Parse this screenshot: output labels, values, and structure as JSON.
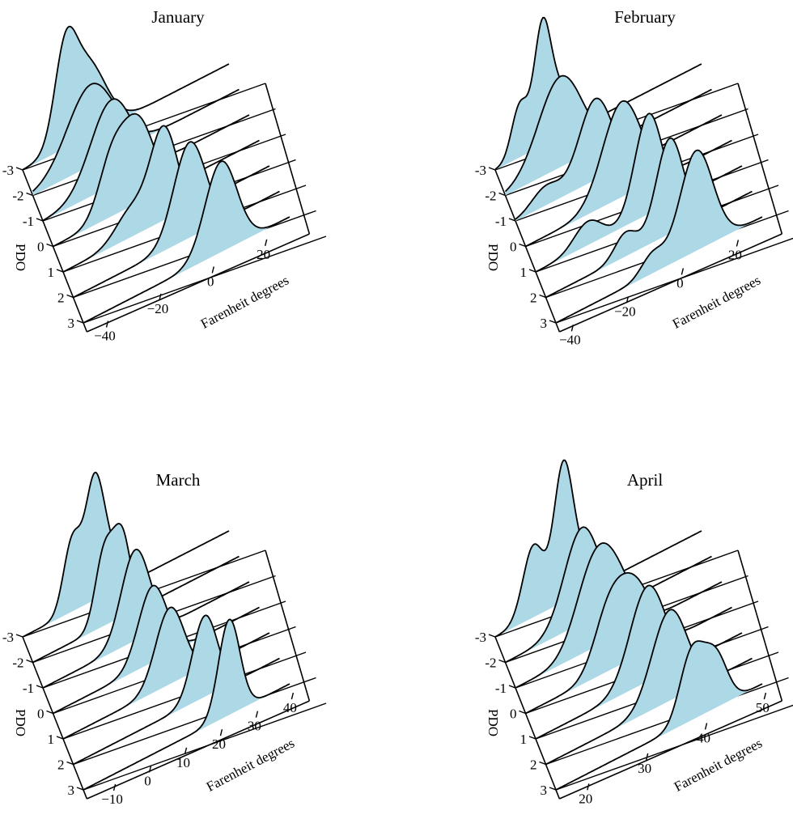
{
  "chart_data": [
    {
      "type": "area",
      "title": "January",
      "xlabel": "Farenheit degrees",
      "ylabel": "PDO",
      "x_ticks": [
        "-40",
        "-20",
        "0",
        "20"
      ],
      "y_ticks": [
        "-3",
        "-2",
        "-1",
        "0",
        "1",
        "2",
        "3"
      ],
      "ylim": [
        -3,
        3
      ],
      "grid": true,
      "series": [
        {
          "pdo": -3,
          "peaks": [
            {
              "x": -32,
              "height": 0.8,
              "width": 4
            },
            {
              "x": -24,
              "height": 0.78,
              "width": 7
            }
          ]
        },
        {
          "pdo": -2,
          "peaks": [
            {
              "x": -26,
              "height": 0.85,
              "width": 9
            }
          ]
        },
        {
          "pdo": -1,
          "peaks": [
            {
              "x": -22,
              "height": 0.9,
              "width": 8
            }
          ]
        },
        {
          "pdo": 0,
          "peaks": [
            {
              "x": -26,
              "height": 0.55,
              "width": 5
            },
            {
              "x": -16,
              "height": 0.85,
              "width": 6
            }
          ]
        },
        {
          "pdo": 1,
          "peaks": [
            {
              "x": -22,
              "height": 0.3,
              "width": 6
            },
            {
              "x": -10,
              "height": 0.95,
              "width": 5
            }
          ]
        },
        {
          "pdo": 2,
          "peaks": [
            {
              "x": -4,
              "height": 1.0,
              "width": 6
            }
          ]
        },
        {
          "pdo": 3,
          "peaks": [
            {
              "x": 4,
              "height": 0.95,
              "width": 6
            }
          ]
        }
      ]
    },
    {
      "type": "area",
      "title": "February",
      "xlabel": "Farenheit degrees",
      "ylabel": "PDO",
      "x_ticks": [
        "-40",
        "-20",
        "0",
        "20"
      ],
      "y_ticks": [
        "-3",
        "-2",
        "-1",
        "0",
        "1",
        "2",
        "3"
      ],
      "ylim": [
        -3,
        3
      ],
      "grid": true,
      "series": [
        {
          "pdo": -3,
          "peaks": [
            {
              "x": -36,
              "height": 0.55,
              "width": 3
            },
            {
              "x": -28,
              "height": 1.15,
              "width": 3
            },
            {
              "x": -22,
              "height": 0.5,
              "width": 4
            }
          ]
        },
        {
          "pdo": -2,
          "peaks": [
            {
              "x": -25,
              "height": 0.95,
              "width": 8
            }
          ]
        },
        {
          "pdo": -1,
          "peaks": [
            {
              "x": -34,
              "height": 0.2,
              "width": 5
            },
            {
              "x": -16,
              "height": 0.85,
              "width": 6
            }
          ]
        },
        {
          "pdo": 0,
          "peaks": [
            {
              "x": -10,
              "height": 1.0,
              "width": 7
            }
          ]
        },
        {
          "pdo": 1,
          "peaks": [
            {
              "x": -26,
              "height": 0.25,
              "width": 5
            },
            {
              "x": -4,
              "height": 1.05,
              "width": 5
            }
          ]
        },
        {
          "pdo": 2,
          "peaks": [
            {
              "x": -16,
              "height": 0.25,
              "width": 4
            },
            {
              "x": 0,
              "height": 1.0,
              "width": 5
            }
          ]
        },
        {
          "pdo": 3,
          "peaks": [
            {
              "x": -10,
              "height": 0.2,
              "width": 4
            },
            {
              "x": 6,
              "height": 1.05,
              "width": 6
            }
          ]
        }
      ]
    },
    {
      "type": "area",
      "title": "March",
      "xlabel": "Farenheit degrees",
      "ylabel": "PDO",
      "x_ticks": [
        "-10",
        "0",
        "10",
        "20",
        "30",
        "40"
      ],
      "y_ticks": [
        "-3",
        "-2",
        "-1",
        "0",
        "1",
        "2",
        "3"
      ],
      "ylim": [
        -3,
        3
      ],
      "grid": true,
      "series": [
        {
          "pdo": -3,
          "peaks": [
            {
              "x": -4,
              "height": 0.75,
              "width": 2.5
            },
            {
              "x": 2,
              "height": 1.1,
              "width": 2.5
            },
            {
              "x": 6,
              "height": 0.45,
              "width": 3
            }
          ]
        },
        {
          "pdo": -2,
          "peaks": [
            {
              "x": 2,
              "height": 0.75,
              "width": 2.5
            },
            {
              "x": 7,
              "height": 0.85,
              "width": 2.5
            }
          ]
        },
        {
          "pdo": -1,
          "peaks": [
            {
              "x": 8,
              "height": 0.95,
              "width": 4
            }
          ]
        },
        {
          "pdo": 0,
          "peaks": [
            {
              "x": 10,
              "height": 0.8,
              "width": 4
            }
          ]
        },
        {
          "pdo": 1,
          "peaks": [
            {
              "x": 12,
              "height": 0.8,
              "width": 4
            }
          ]
        },
        {
          "pdo": 2,
          "peaks": [
            {
              "x": 19,
              "height": 0.85,
              "width": 3.5
            }
          ]
        },
        {
          "pdo": 3,
          "peaks": [
            {
              "x": 23,
              "height": 1.0,
              "width": 3
            }
          ]
        }
      ]
    },
    {
      "type": "area",
      "title": "April",
      "xlabel": "Farenheit degrees",
      "ylabel": "PDO",
      "x_ticks": [
        "20",
        "30",
        "40",
        "50"
      ],
      "y_ticks": [
        "-3",
        "-2",
        "-1",
        "0",
        "1",
        "2",
        "3"
      ],
      "ylim": [
        -3,
        3
      ],
      "grid": true,
      "series": [
        {
          "pdo": -3,
          "peaks": [
            {
              "x": 21.5,
              "height": 0.75,
              "width": 1.8
            },
            {
              "x": 26.5,
              "height": 1.35,
              "width": 1.6
            },
            {
              "x": 29.5,
              "height": 0.35,
              "width": 2
            }
          ]
        },
        {
          "pdo": -2,
          "peaks": [
            {
              "x": 28,
              "height": 1.0,
              "width": 3
            }
          ]
        },
        {
          "pdo": -1,
          "peaks": [
            {
              "x": 28,
              "height": 0.75,
              "width": 3
            },
            {
              "x": 32,
              "height": 0.55,
              "width": 3
            }
          ]
        },
        {
          "pdo": 0,
          "peaks": [
            {
              "x": 29,
              "height": 0.55,
              "width": 2.5
            },
            {
              "x": 33.5,
              "height": 0.75,
              "width": 3
            }
          ]
        },
        {
          "pdo": 1,
          "peaks": [
            {
              "x": 34,
              "height": 1.0,
              "width": 3
            }
          ]
        },
        {
          "pdo": 2,
          "peaks": [
            {
              "x": 36,
              "height": 0.95,
              "width": 3
            }
          ]
        },
        {
          "pdo": 3,
          "peaks": [
            {
              "x": 38,
              "height": 0.7,
              "width": 2
            },
            {
              "x": 42,
              "height": 0.55,
              "width": 2
            }
          ]
        }
      ]
    }
  ],
  "colors": {
    "fill": "#add8e6",
    "stroke": "#000000",
    "background": "#ffffff"
  }
}
